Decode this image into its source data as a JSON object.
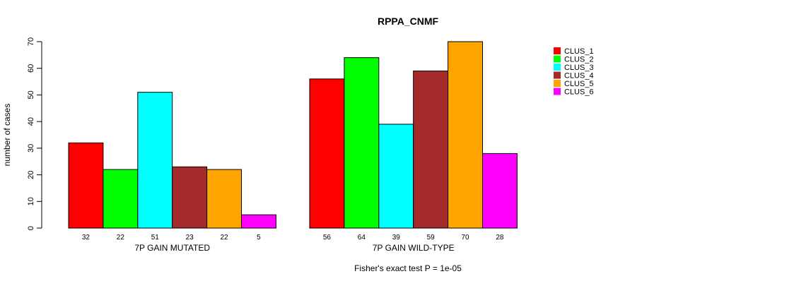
{
  "chart_data": {
    "type": "bar",
    "title": "RPPA_CNMF",
    "ylabel": "number of cases",
    "ylim": [
      0,
      70
    ],
    "yticks": [
      "0",
      "10",
      "20",
      "30",
      "40",
      "50",
      "60",
      "70"
    ],
    "grid": false,
    "legend_position": "top-right",
    "footnote": "Fisher's exact test P = 1e-05",
    "series_names": [
      "CLUS_1",
      "CLUS_2",
      "CLUS_3",
      "CLUS_4",
      "CLUS_5",
      "CLUS_6"
    ],
    "colors": [
      "#FF0000",
      "#00FF00",
      "#00FFFF",
      "#A52A2A",
      "#FFA500",
      "#FF00FF"
    ],
    "groups": [
      {
        "label": "7P GAIN MUTATED",
        "values": [
          32,
          22,
          51,
          23,
          22,
          5
        ]
      },
      {
        "label": "7P GAIN WILD-TYPE",
        "values": [
          56,
          64,
          39,
          59,
          70,
          28
        ]
      }
    ]
  }
}
